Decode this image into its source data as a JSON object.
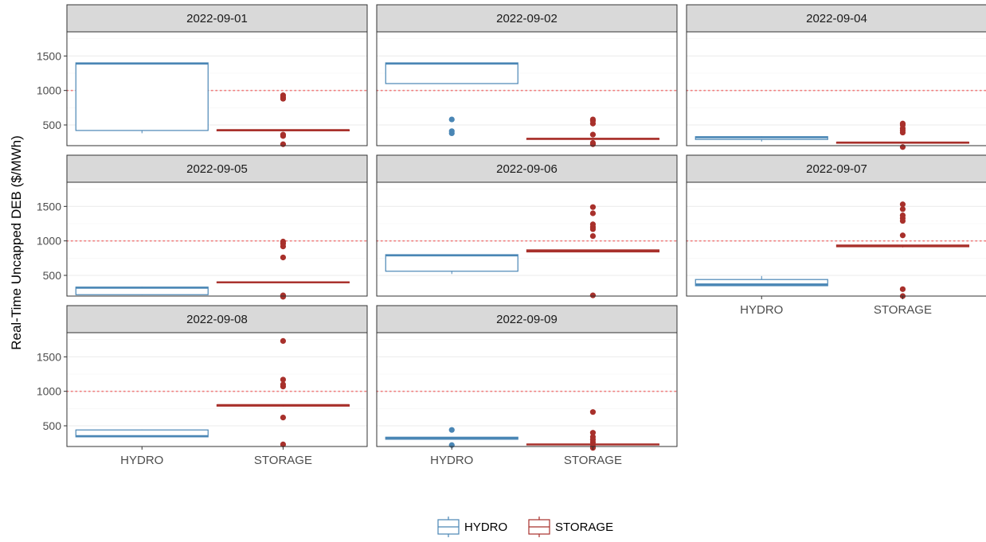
{
  "chart_data": {
    "type": "boxplot",
    "ylabel": "Real-Time Uncapped DEB ($/MWh)",
    "xlabel": "",
    "categories": [
      "HYDRO",
      "STORAGE"
    ],
    "ylim": [
      200,
      1850
    ],
    "yticks": [
      500,
      1000,
      1500
    ],
    "reference_line": {
      "y": 1000,
      "style": "dotted",
      "color": "#f08080"
    },
    "grid": true,
    "legend": {
      "position": "bottom",
      "entries": [
        "HYDRO",
        "STORAGE"
      ]
    },
    "colors": {
      "HYDRO": "#4a86b5",
      "STORAGE": "#a8302b"
    },
    "facets": [
      {
        "title": "2022-09-01",
        "boxes": [
          {
            "group": "HYDRO",
            "q1": 420,
            "median": 1390,
            "q3": 1400,
            "lower": 380,
            "upper": 1400,
            "outliers": []
          },
          {
            "group": "STORAGE",
            "q1": 415,
            "median": 425,
            "q3": 430,
            "lower": 410,
            "upper": 435,
            "outliers": [
              220,
              340,
              360,
              880,
              900,
              930
            ]
          }
        ]
      },
      {
        "title": "2022-09-02",
        "boxes": [
          {
            "group": "HYDRO",
            "q1": 1100,
            "median": 1390,
            "q3": 1400,
            "lower": 1100,
            "upper": 1400,
            "outliers": [
              380,
              410,
              580
            ]
          },
          {
            "group": "STORAGE",
            "q1": 290,
            "median": 300,
            "q3": 305,
            "lower": 285,
            "upper": 310,
            "outliers": [
              220,
              240,
              360,
              520,
              560,
              580
            ]
          }
        ]
      },
      {
        "title": "2022-09-04",
        "boxes": [
          {
            "group": "HYDRO",
            "q1": 290,
            "median": 320,
            "q3": 330,
            "lower": 260,
            "upper": 335,
            "outliers": []
          },
          {
            "group": "STORAGE",
            "q1": 235,
            "median": 245,
            "q3": 250,
            "lower": 230,
            "upper": 255,
            "outliers": [
              180,
              390,
              420,
              450,
              500,
              520
            ]
          }
        ]
      },
      {
        "title": "2022-09-05",
        "boxes": [
          {
            "group": "HYDRO",
            "q1": 220,
            "median": 320,
            "q3": 330,
            "lower": 215,
            "upper": 335,
            "outliers": []
          },
          {
            "group": "STORAGE",
            "q1": 395,
            "median": 400,
            "q3": 405,
            "lower": 390,
            "upper": 410,
            "outliers": [
              190,
              210,
              760,
              920,
              960,
              990
            ]
          }
        ]
      },
      {
        "title": "2022-09-06",
        "boxes": [
          {
            "group": "HYDRO",
            "q1": 560,
            "median": 790,
            "q3": 800,
            "lower": 520,
            "upper": 800,
            "outliers": []
          },
          {
            "group": "STORAGE",
            "q1": 840,
            "median": 860,
            "q3": 870,
            "lower": 835,
            "upper": 875,
            "outliers": [
              210,
              1070,
              1170,
              1200,
              1240,
              1400,
              1490
            ]
          }
        ]
      },
      {
        "title": "2022-09-07",
        "boxes": [
          {
            "group": "HYDRO",
            "q1": 350,
            "median": 370,
            "q3": 440,
            "lower": 345,
            "upper": 490,
            "outliers": []
          },
          {
            "group": "STORAGE",
            "q1": 915,
            "median": 930,
            "q3": 940,
            "lower": 905,
            "upper": 945,
            "outliers": [
              200,
              300,
              1080,
              1290,
              1330,
              1370,
              1460,
              1530
            ]
          }
        ]
      },
      {
        "title": "2022-09-08",
        "boxes": [
          {
            "group": "HYDRO",
            "q1": 340,
            "median": 350,
            "q3": 440,
            "lower": 335,
            "upper": 445,
            "outliers": []
          },
          {
            "group": "STORAGE",
            "q1": 785,
            "median": 800,
            "q3": 805,
            "lower": 780,
            "upper": 810,
            "outliers": [
              230,
              620,
              1070,
              1100,
              1170,
              1730
            ]
          }
        ]
      },
      {
        "title": "2022-09-09",
        "boxes": [
          {
            "group": "HYDRO",
            "q1": 305,
            "median": 320,
            "q3": 335,
            "lower": 300,
            "upper": 340,
            "outliers": [
              220,
              440
            ]
          },
          {
            "group": "STORAGE",
            "q1": 225,
            "median": 230,
            "q3": 235,
            "lower": 220,
            "upper": 240,
            "outliers": [
              180,
              200,
              260,
              300,
              340,
              400,
              700
            ]
          }
        ]
      }
    ]
  }
}
